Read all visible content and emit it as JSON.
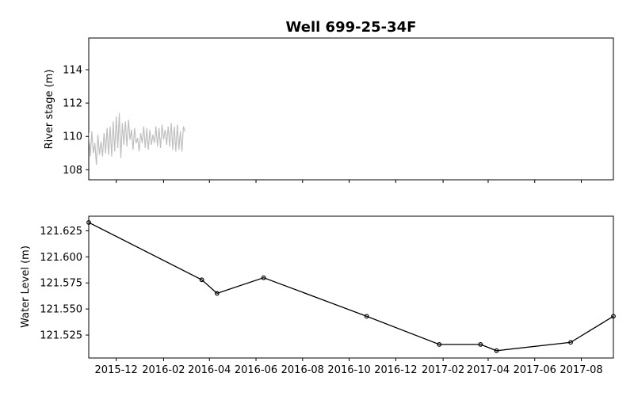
{
  "chart_data": [
    {
      "type": "line",
      "title": "Well 699-25-34F",
      "xlabel": "",
      "ylabel": "River stage (m)",
      "xlim": [
        "2015-10-26",
        "2017-09-12"
      ],
      "ylim": [
        107.4,
        115.9
      ],
      "yticks": [
        108,
        110,
        112,
        114
      ],
      "grid": false,
      "series": [
        {
          "color": "#bfbfbf",
          "x": [
            "2015-10-26",
            "2015-10-28",
            "2015-10-30",
            "2015-11-01",
            "2015-11-03",
            "2015-11-05",
            "2015-11-07",
            "2015-11-09",
            "2015-11-11",
            "2015-11-13",
            "2015-11-15",
            "2015-11-17",
            "2015-11-19",
            "2015-11-21",
            "2015-11-23",
            "2015-11-25",
            "2015-11-27",
            "2015-11-29",
            "2015-12-01",
            "2015-12-03",
            "2015-12-05",
            "2015-12-07",
            "2015-12-09",
            "2015-12-11",
            "2015-12-13",
            "2015-12-15",
            "2015-12-17",
            "2015-12-19",
            "2015-12-21",
            "2015-12-23",
            "2015-12-25",
            "2015-12-27",
            "2015-12-29",
            "2015-12-31",
            "2016-01-02",
            "2016-01-04",
            "2016-01-06",
            "2016-01-08",
            "2016-01-10",
            "2016-01-12",
            "2016-01-14",
            "2016-01-16",
            "2016-01-18",
            "2016-01-20",
            "2016-01-22",
            "2016-01-24",
            "2016-01-26",
            "2016-01-28",
            "2016-01-30",
            "2016-02-01",
            "2016-02-03",
            "2016-02-05",
            "2016-02-07",
            "2016-02-09",
            "2016-02-11",
            "2016-02-13",
            "2016-02-15",
            "2016-02-17",
            "2016-02-19",
            "2016-02-21",
            "2016-02-23",
            "2016-02-25",
            "2016-02-27",
            "2016-02-29"
          ],
          "values": [
            110.2,
            108.8,
            110.3,
            109.0,
            109.6,
            108.3,
            110.1,
            108.9,
            109.7,
            108.8,
            110.2,
            109.0,
            110.5,
            108.9,
            110.6,
            108.8,
            110.9,
            109.1,
            111.2,
            109.3,
            111.4,
            108.7,
            110.8,
            109.5,
            110.9,
            109.4,
            111.0,
            109.8,
            110.4,
            109.2,
            110.5,
            109.6,
            109.9,
            109.1,
            110.2,
            109.6,
            110.6,
            109.3,
            110.5,
            109.2,
            110.4,
            109.5,
            110.1,
            109.6,
            110.6,
            109.4,
            110.5,
            109.3,
            110.7,
            109.8,
            110.4,
            109.5,
            110.6,
            109.4,
            110.8,
            109.2,
            110.6,
            109.1,
            110.7,
            109.2,
            110.3,
            109.1,
            110.6,
            110.3
          ]
        }
      ]
    },
    {
      "type": "line",
      "xlabel": "",
      "ylabel": "Water Level (m)",
      "xlim": [
        "2015-10-26",
        "2017-09-12"
      ],
      "ylim": [
        121.503,
        121.639
      ],
      "yticks": [
        121.525,
        121.55,
        121.575,
        121.6,
        121.625
      ],
      "ytick_labels": [
        "121.525",
        "121.550",
        "121.575",
        "121.600",
        "121.625"
      ],
      "xticks": [
        "2015-12-01",
        "2016-02-01",
        "2016-04-01",
        "2016-06-01",
        "2016-08-01",
        "2016-10-01",
        "2016-12-01",
        "2017-02-01",
        "2017-04-01",
        "2017-06-01",
        "2017-08-01"
      ],
      "xtick_labels": [
        "2015-12",
        "2016-02",
        "2016-04",
        "2016-06",
        "2016-08",
        "2016-10",
        "2016-12",
        "2017-02",
        "2017-04",
        "2017-06",
        "2017-08"
      ],
      "grid": false,
      "series": [
        {
          "color": "#000000",
          "marker": "circle",
          "x": [
            "2015-10-26",
            "2016-03-22",
            "2016-04-11",
            "2016-06-11",
            "2016-10-24",
            "2017-01-27",
            "2017-03-22",
            "2017-04-12",
            "2017-07-18",
            "2017-09-12"
          ],
          "values": [
            121.633,
            121.578,
            121.565,
            121.58,
            121.543,
            121.516,
            121.516,
            121.51,
            121.518,
            121.543
          ]
        }
      ]
    }
  ]
}
